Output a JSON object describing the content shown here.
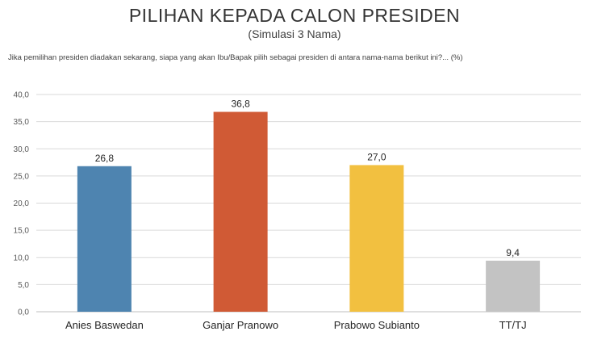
{
  "chart_data": {
    "type": "bar",
    "title": "PILIHAN KEPADA CALON PRESIDEN",
    "subtitle": "(Simulasi 3 Nama)",
    "question": "Jika pemilihan presiden diadakan sekarang, siapa yang akan Ibu/Bapak pilih sebagai presiden di antara nama-nama berikut ini?... (%)",
    "categories": [
      "Anies Baswedan",
      "Ganjar Pranowo",
      "Prabowo Subianto",
      "TT/TJ"
    ],
    "values": [
      26.8,
      36.8,
      27.0,
      9.4
    ],
    "value_labels": [
      "26,8",
      "36,8",
      "27,0",
      "9,4"
    ],
    "colors": [
      "#4e84b0",
      "#d05a35",
      "#f2c040",
      "#c3c3c3"
    ],
    "ylim": [
      0,
      40
    ],
    "yticks": [
      "0,0",
      "5,0",
      "10,0",
      "15,0",
      "20,0",
      "25,0",
      "30,0",
      "35,0",
      "40,0"
    ],
    "ytick_values": [
      0,
      5,
      10,
      15,
      20,
      25,
      30,
      35,
      40
    ],
    "grid": true,
    "legend": "none"
  }
}
